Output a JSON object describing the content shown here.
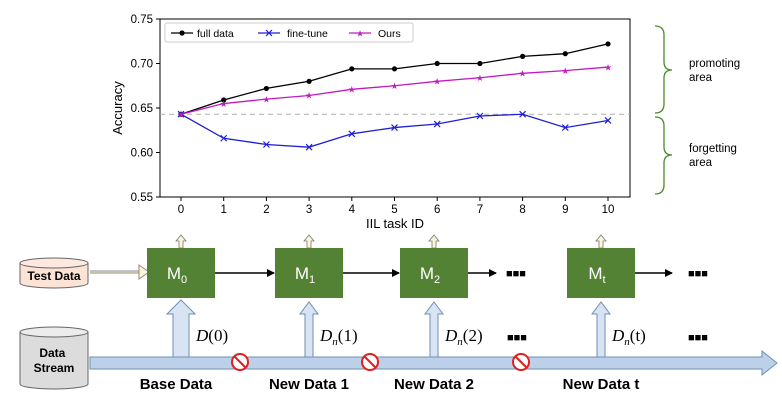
{
  "chart_data": {
    "type": "line",
    "xlabel": "IIL task ID",
    "ylabel": "Accuracy",
    "x": [
      0,
      1,
      2,
      3,
      4,
      5,
      6,
      7,
      8,
      9,
      10
    ],
    "ylim": [
      0.55,
      0.75
    ],
    "yticks": [
      0.55,
      0.6,
      0.65,
      0.7,
      0.75
    ],
    "ytick_labels": [
      "0.55",
      "0.60",
      "0.65",
      "0.70",
      "0.75"
    ],
    "xtick_labels": [
      "0",
      "1",
      "2",
      "3",
      "4",
      "5",
      "6",
      "7",
      "8",
      "9",
      "10"
    ],
    "baseline": 0.643,
    "legend_position": "top-left",
    "series": [
      {
        "name": "full data",
        "color": "#000000",
        "marker": "dot",
        "values": [
          0.643,
          0.659,
          0.672,
          0.68,
          0.694,
          0.694,
          0.7,
          0.7,
          0.708,
          0.711,
          0.722
        ]
      },
      {
        "name": "fine-tune",
        "color": "#1f1fd6",
        "marker": "x",
        "values": [
          0.643,
          0.616,
          0.609,
          0.606,
          0.621,
          0.628,
          0.632,
          0.641,
          0.643,
          0.628,
          0.636
        ]
      },
      {
        "name": "Ours",
        "color": "#c21ac2",
        "marker": "star",
        "values": [
          0.643,
          0.655,
          0.66,
          0.664,
          0.671,
          0.675,
          0.68,
          0.684,
          0.689,
          0.692,
          0.696
        ]
      }
    ]
  },
  "annotations": {
    "promoting": "promoting\narea",
    "forgetting": "forgetting\narea",
    "brace_color": "#4a8a2a"
  },
  "diagram": {
    "test_data_label": "Test Data",
    "data_stream_label": [
      "Data",
      "Stream"
    ],
    "models": [
      {
        "name": "M",
        "sub": "0"
      },
      {
        "name": "M",
        "sub": "1"
      },
      {
        "name": "M",
        "sub": "2"
      },
      {
        "name": "M",
        "sub": "t"
      }
    ],
    "data_labels": [
      {
        "name": "D",
        "sub": "",
        "arg": "(0)"
      },
      {
        "name": "D",
        "sub": "n",
        "arg": "(1)"
      },
      {
        "name": "D",
        "sub": "n",
        "arg": "(2)"
      },
      {
        "name": "D",
        "sub": "n",
        "arg": "(t)"
      }
    ],
    "stage_labels": [
      "Base Data",
      "New Data 1",
      "New Data 2",
      "New Data t"
    ],
    "ellipsis": "■■■",
    "model_color": "#548235",
    "stream_color": "#bcd0ea",
    "test_data_color": "#fbe3d6"
  }
}
